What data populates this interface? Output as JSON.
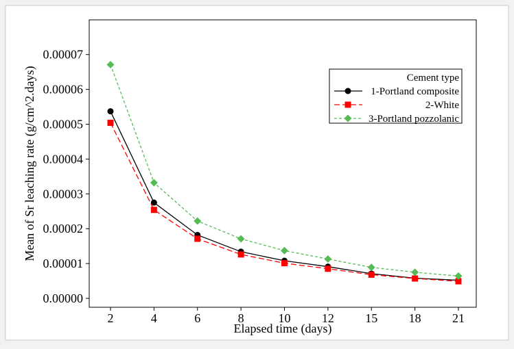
{
  "chart_data": {
    "type": "line",
    "xlabel": "Elapsed time (days)",
    "ylabel": "Mean of Sr leaching rate (g/cm^2.days)",
    "categories": [
      "2",
      "4",
      "6",
      "8",
      "10",
      "12",
      "15",
      "18",
      "21"
    ],
    "y_ticks": [
      "0.00000",
      "0.00001",
      "0.00002",
      "0.00003",
      "0.00004",
      "0.00005",
      "0.00006",
      "0.00007"
    ],
    "ylim": [
      0,
      7e-05
    ],
    "grid": false,
    "legend": {
      "title": "Cement type",
      "placement": "top-right"
    },
    "series": [
      {
        "name": "1-Portland composite",
        "marker": "circle",
        "color": "#000000",
        "dash": "solid",
        "values": [
          5.37e-05,
          2.75e-05,
          1.82e-05,
          1.34e-05,
          1.08e-05,
          9.1e-06,
          7.1e-06,
          5.8e-06,
          5.2e-06
        ]
      },
      {
        "name": "2-White",
        "marker": "square",
        "color": "#ff0000",
        "dash": "long-dash",
        "values": [
          5.04e-05,
          2.54e-05,
          1.71e-05,
          1.26e-05,
          1.01e-05,
          8.5e-06,
          6.8e-06,
          5.7e-06,
          4.9e-06
        ]
      },
      {
        "name": "3-Portland pozzolanic",
        "marker": "diamond",
        "color": "#55bb55",
        "dash": "short-dash",
        "values": [
          6.71e-05,
          3.32e-05,
          2.22e-05,
          1.71e-05,
          1.37e-05,
          1.13e-05,
          8.9e-06,
          7.5e-06,
          6.4e-06
        ]
      }
    ]
  }
}
